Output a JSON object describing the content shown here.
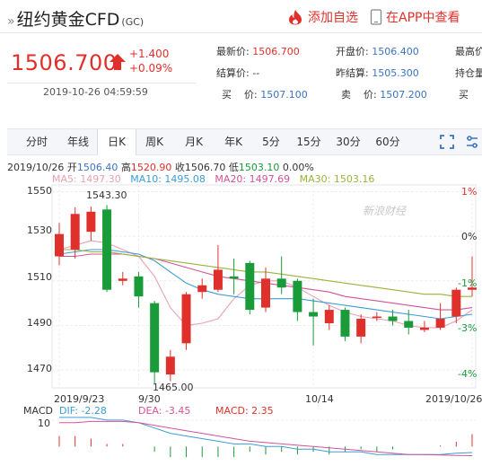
{
  "header": {
    "prefix": "»",
    "name": "纽约黄金CFD",
    "code": "(GC)",
    "add_pick": "添加自选",
    "view_app": "在APP中查看"
  },
  "quote": {
    "price": "1506.700",
    "change": "+1.400",
    "change_pct": "+0.09%",
    "time": "2019-10-26 04:59:59",
    "latest_label": "最新价:",
    "latest_value": "1506.700",
    "open_label": "开盘价:",
    "open_value": "1506.400",
    "high_label": "最高价",
    "settle_label": "结算价:",
    "settle_value": "--",
    "prev_settle_label": "昨结算:",
    "prev_settle_value": "1505.300",
    "hold_label": "持仓量",
    "buy_label": "买    价:",
    "buy_value": "1507.100",
    "sell_label": "卖    价:",
    "sell_value": "1507.200",
    "buy_qty_label": "买"
  },
  "tabs": [
    "分时",
    "年线",
    "日K",
    "周K",
    "月K",
    "年K",
    "5分",
    "15分",
    "30分",
    "60分"
  ],
  "active_tab": "日K",
  "ohlc": {
    "date": "2019/10/26",
    "open_label": "开",
    "open": "1506.40",
    "high_label": "高",
    "high": "1520.90",
    "close_label": "收",
    "close": "1506.70",
    "low_label": "低",
    "low": "1503.10",
    "chg": "0.00%"
  },
  "ma": {
    "ma5": "MA5: 1497.30",
    "ma10": "MA10: 1495.08",
    "ma20": "MA20: 1497.69",
    "ma30": "MA30: 1503.16"
  },
  "macd": {
    "macd_label": "MACD",
    "dif": "DIF: -2.28",
    "dea": "DEA: -3.45",
    "macd": "MACD: 2.35"
  },
  "colors": {
    "up": "#e0302b",
    "down": "#1a9b3a",
    "ma5": "#e9a0b0",
    "ma10": "#3b9dd6",
    "ma20": "#d3539a",
    "ma30": "#9ab33a"
  },
  "chart_data": {
    "type": "candlestick",
    "y_ticks": [
      "1550",
      "1530",
      "1510",
      "1490",
      "1470"
    ],
    "ylim": [
      1462,
      1553
    ],
    "pct_ticks": [
      "1%",
      "0%",
      "-1%",
      "-3%",
      "-4%"
    ],
    "x_labels": [
      "2019/9/23",
      "9/30",
      "10/14",
      "2019/10/26"
    ],
    "annotations": {
      "max": "1543.30",
      "min": "1465.00"
    },
    "macd_tick": "10",
    "watermark": "新浪财经",
    "candles": [
      {
        "o": 1521,
        "c": 1531,
        "h": 1536,
        "l": 1517
      },
      {
        "o": 1524,
        "c": 1540,
        "h": 1543,
        "l": 1520
      },
      {
        "o": 1532,
        "c": 1541,
        "h": 1543.3,
        "l": 1528
      },
      {
        "o": 1542,
        "c": 1506,
        "h": 1544,
        "l": 1505
      },
      {
        "o": 1510,
        "c": 1511,
        "h": 1514,
        "l": 1508
      },
      {
        "o": 1512,
        "c": 1503,
        "h": 1514,
        "l": 1498
      },
      {
        "o": 1500,
        "c": 1469,
        "h": 1501,
        "l": 1464
      },
      {
        "o": 1468,
        "c": 1476,
        "h": 1479,
        "l": 1465
      },
      {
        "o": 1482,
        "c": 1504,
        "h": 1505,
        "l": 1479
      },
      {
        "o": 1505,
        "c": 1508,
        "h": 1511,
        "l": 1502
      },
      {
        "o": 1506,
        "c": 1515,
        "h": 1526,
        "l": 1505
      },
      {
        "o": 1512,
        "c": 1511,
        "h": 1520,
        "l": 1504
      },
      {
        "o": 1518,
        "c": 1497,
        "h": 1519,
        "l": 1495
      },
      {
        "o": 1498,
        "c": 1511,
        "h": 1516,
        "l": 1496
      },
      {
        "o": 1511,
        "c": 1507,
        "h": 1521,
        "l": 1504
      },
      {
        "o": 1510,
        "c": 1496,
        "h": 1511,
        "l": 1492
      },
      {
        "o": 1496,
        "c": 1494,
        "h": 1502,
        "l": 1481
      },
      {
        "o": 1491,
        "c": 1497,
        "h": 1499,
        "l": 1488
      },
      {
        "o": 1497,
        "c": 1485,
        "h": 1498,
        "l": 1483
      },
      {
        "o": 1485,
        "c": 1493,
        "h": 1495,
        "l": 1482
      },
      {
        "o": 1494,
        "c": 1494,
        "h": 1496,
        "l": 1492
      },
      {
        "o": 1494,
        "c": 1492,
        "h": 1497,
        "l": 1490
      },
      {
        "o": 1492,
        "c": 1489,
        "h": 1497,
        "l": 1486
      },
      {
        "o": 1488,
        "c": 1489,
        "h": 1492,
        "l": 1487
      },
      {
        "o": 1489,
        "c": 1493,
        "h": 1500,
        "l": 1488
      },
      {
        "o": 1494,
        "c": 1506,
        "h": 1507,
        "l": 1491
      },
      {
        "o": 1506,
        "c": 1507,
        "h": 1521,
        "l": 1503
      }
    ],
    "ma_series": [
      {
        "name": "MA5",
        "values": [
          1524,
          1526,
          1528,
          1527,
          1524,
          1521,
          1512,
          1498,
          1490,
          1491,
          1493,
          1502,
          1508,
          1510,
          1510,
          1507,
          1503,
          1499,
          1496,
          1494,
          1493,
          1492,
          1490,
          1489,
          1489,
          1492,
          1497
        ]
      },
      {
        "name": "MA10",
        "values": [
          1522,
          1523,
          1524,
          1524,
          1523,
          1522,
          1519,
          1514,
          1509,
          1506,
          1504,
          1503,
          1502,
          1502,
          1502,
          1502,
          1501,
          1500,
          1499,
          1498,
          1497,
          1496,
          1495,
          1494,
          1493,
          1494,
          1495
        ]
      },
      {
        "name": "MA20",
        "values": [
          1521,
          1521,
          1522,
          1522,
          1522,
          1521,
          1520,
          1518,
          1516,
          1514,
          1512,
          1511,
          1510,
          1509,
          1508,
          1507,
          1506,
          1505,
          1503,
          1502,
          1501,
          1500,
          1499,
          1498,
          1497,
          1497,
          1498
        ]
      },
      {
        "name": "MA30",
        "values": [
          1524,
          1524,
          1523,
          1523,
          1522,
          1521,
          1520,
          1519,
          1518,
          1517,
          1516,
          1515,
          1514,
          1514,
          1513,
          1512,
          1511,
          1510,
          1509,
          1508,
          1507,
          1506,
          1505,
          1504,
          1504,
          1503,
          1503
        ]
      }
    ],
    "macd_series": {
      "dif": [
        11,
        11,
        11,
        10,
        10,
        9,
        7,
        5,
        4,
        3,
        2,
        1,
        1,
        0,
        0,
        -1,
        -1,
        -2,
        -2,
        -2,
        -3,
        -3,
        -3,
        -3,
        -3,
        -2.5,
        -2.28
      ],
      "dea": [
        9,
        9,
        9.5,
        9.5,
        9.5,
        9,
        8,
        7,
        6,
        5,
        4,
        3,
        2,
        1.5,
        1,
        0.5,
        0,
        -0.5,
        -1,
        -1.5,
        -2,
        -2.5,
        -3,
        -3,
        -3.2,
        -3.4,
        -3.45
      ],
      "hist": [
        2,
        2,
        1.5,
        0.5,
        0.5,
        0,
        -1,
        -2,
        -2,
        -2,
        -2,
        -2,
        -1,
        -1.5,
        -1,
        -1.5,
        -1,
        -1.5,
        -1,
        -0.5,
        -1,
        -0.5,
        0,
        0,
        0.2,
        0.9,
        2.35
      ]
    }
  }
}
